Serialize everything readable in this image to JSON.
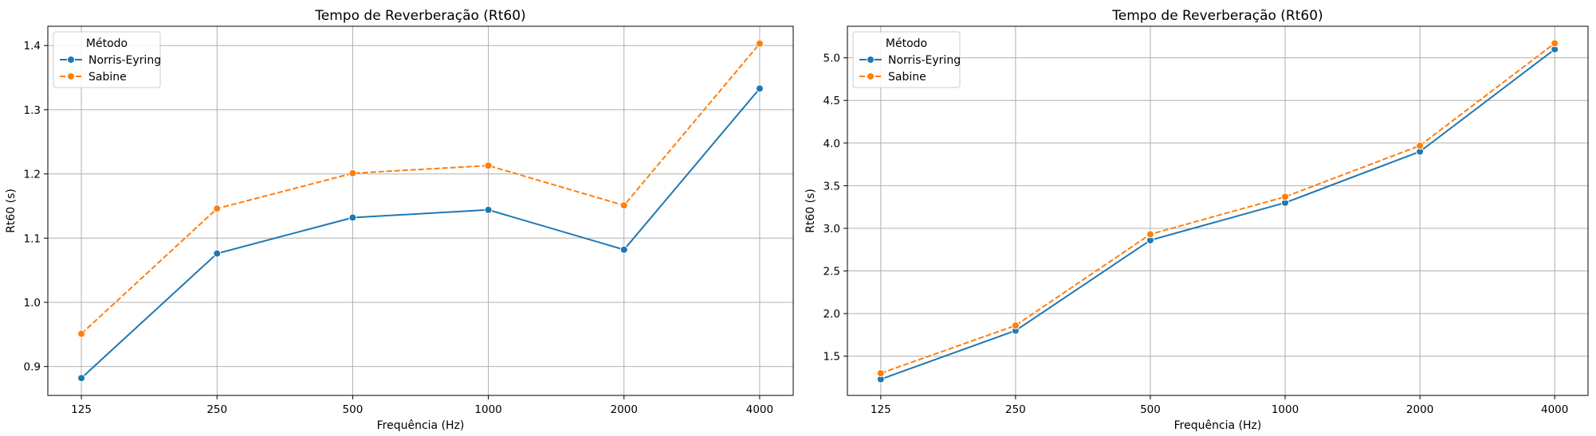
{
  "chart_data": [
    {
      "type": "line",
      "title": "Tempo de Reverberação (Rt60)",
      "xlabel": "Frequência (Hz)",
      "ylabel": "Rt60 (s)",
      "categories": [
        "125",
        "250",
        "500",
        "1000",
        "2000",
        "4000"
      ],
      "series": [
        {
          "name": "Norris-Eyring",
          "values": [
            0.882,
            1.076,
            1.132,
            1.144,
            1.082,
            1.333
          ],
          "color": "#1f77b4",
          "linestyle": "solid",
          "marker": "circle"
        },
        {
          "name": "Sabine",
          "values": [
            0.951,
            1.146,
            1.201,
            1.213,
            1.151,
            1.403
          ],
          "color": "#ff7f0e",
          "linestyle": "dashed",
          "marker": "circle"
        }
      ],
      "yticks": [
        "0.9",
        "1.0",
        "1.1",
        "1.2",
        "1.3",
        "1.4"
      ],
      "ylim": [
        0.855,
        1.43
      ],
      "grid": true,
      "legend_title": "Método",
      "legend_position": "top-left"
    },
    {
      "type": "line",
      "title": "Tempo de Reverberação (Rt60)",
      "xlabel": "Frequência (Hz)",
      "ylabel": "Rt60 (s)",
      "categories": [
        "125",
        "250",
        "500",
        "1000",
        "2000",
        "4000"
      ],
      "series": [
        {
          "name": "Norris-Eyring",
          "values": [
            1.23,
            1.8,
            2.86,
            3.3,
            3.9,
            5.1
          ],
          "color": "#1f77b4",
          "linestyle": "solid",
          "marker": "circle"
        },
        {
          "name": "Sabine",
          "values": [
            1.3,
            1.86,
            2.93,
            3.37,
            3.97,
            5.17
          ],
          "color": "#ff7f0e",
          "linestyle": "dashed",
          "marker": "circle"
        }
      ],
      "yticks": [
        "1.5",
        "2.0",
        "2.5",
        "3.0",
        "3.5",
        "4.0",
        "4.5",
        "5.0"
      ],
      "ylim": [
        1.04,
        5.37
      ],
      "grid": true,
      "legend_title": "Método",
      "legend_position": "top-left"
    }
  ]
}
